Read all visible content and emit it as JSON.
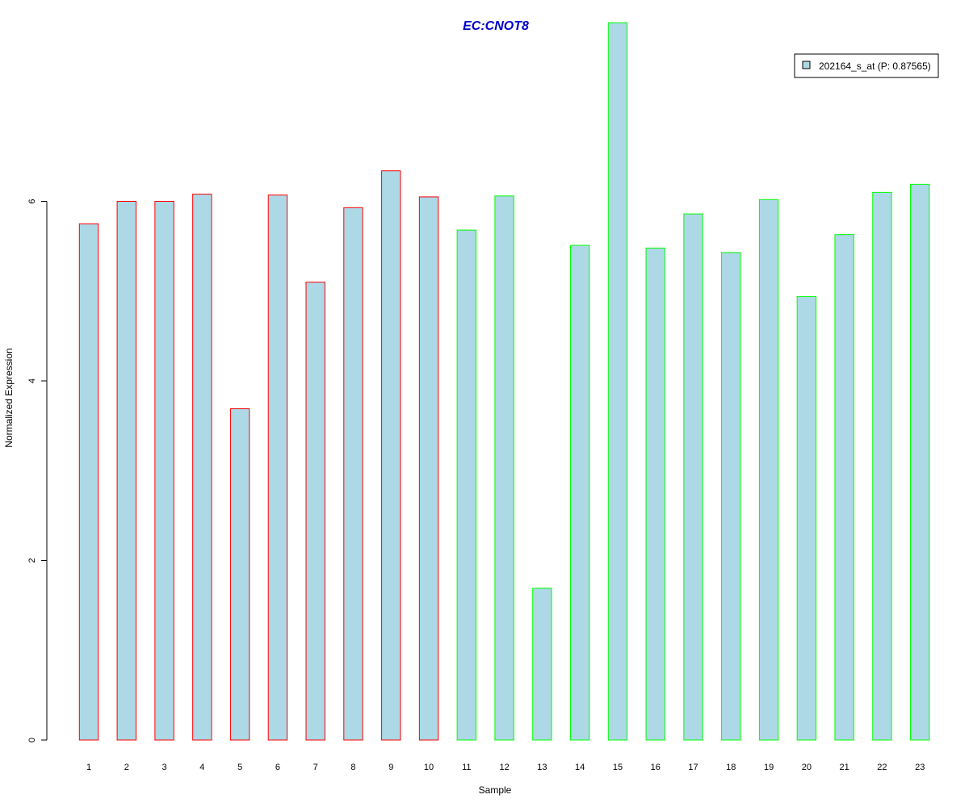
{
  "chart_data": {
    "type": "bar",
    "title": "EC:CNOT8",
    "xlabel": "Sample",
    "ylabel": "Normalized Expression",
    "categories": [
      "1",
      "2",
      "3",
      "4",
      "5",
      "6",
      "7",
      "8",
      "9",
      "10",
      "11",
      "12",
      "13",
      "14",
      "15",
      "16",
      "17",
      "18",
      "19",
      "20",
      "21",
      "22",
      "23"
    ],
    "series": [
      {
        "name": "202164_s_at (P: 0.87565)",
        "values": [
          5.75,
          6.0,
          6.0,
          6.08,
          3.69,
          6.07,
          5.1,
          5.93,
          6.34,
          6.05,
          5.68,
          6.06,
          1.69,
          5.51,
          7.99,
          5.48,
          5.86,
          5.43,
          6.02,
          4.94,
          5.63,
          6.1,
          6.19
        ]
      }
    ],
    "group_border_colors": [
      "#ff0000",
      "#ff0000",
      "#ff0000",
      "#ff0000",
      "#ff0000",
      "#ff0000",
      "#ff0000",
      "#ff0000",
      "#ff0000",
      "#ff0000",
      "#00ff00",
      "#00ff00",
      "#00ff00",
      "#00ff00",
      "#00ff00",
      "#00ff00",
      "#00ff00",
      "#00ff00",
      "#00ff00",
      "#00ff00",
      "#00ff00",
      "#00ff00",
      "#00ff00"
    ],
    "yticks": [
      0,
      2,
      4,
      6
    ],
    "ytick_labels": [
      "0",
      "2",
      "4",
      "6"
    ],
    "ylim": [
      0,
      8
    ],
    "grid": false,
    "legend_position": "top-right",
    "colors": {
      "bar_fill": "#add8e6",
      "title": "#0000cd",
      "axis": "#000000"
    }
  }
}
